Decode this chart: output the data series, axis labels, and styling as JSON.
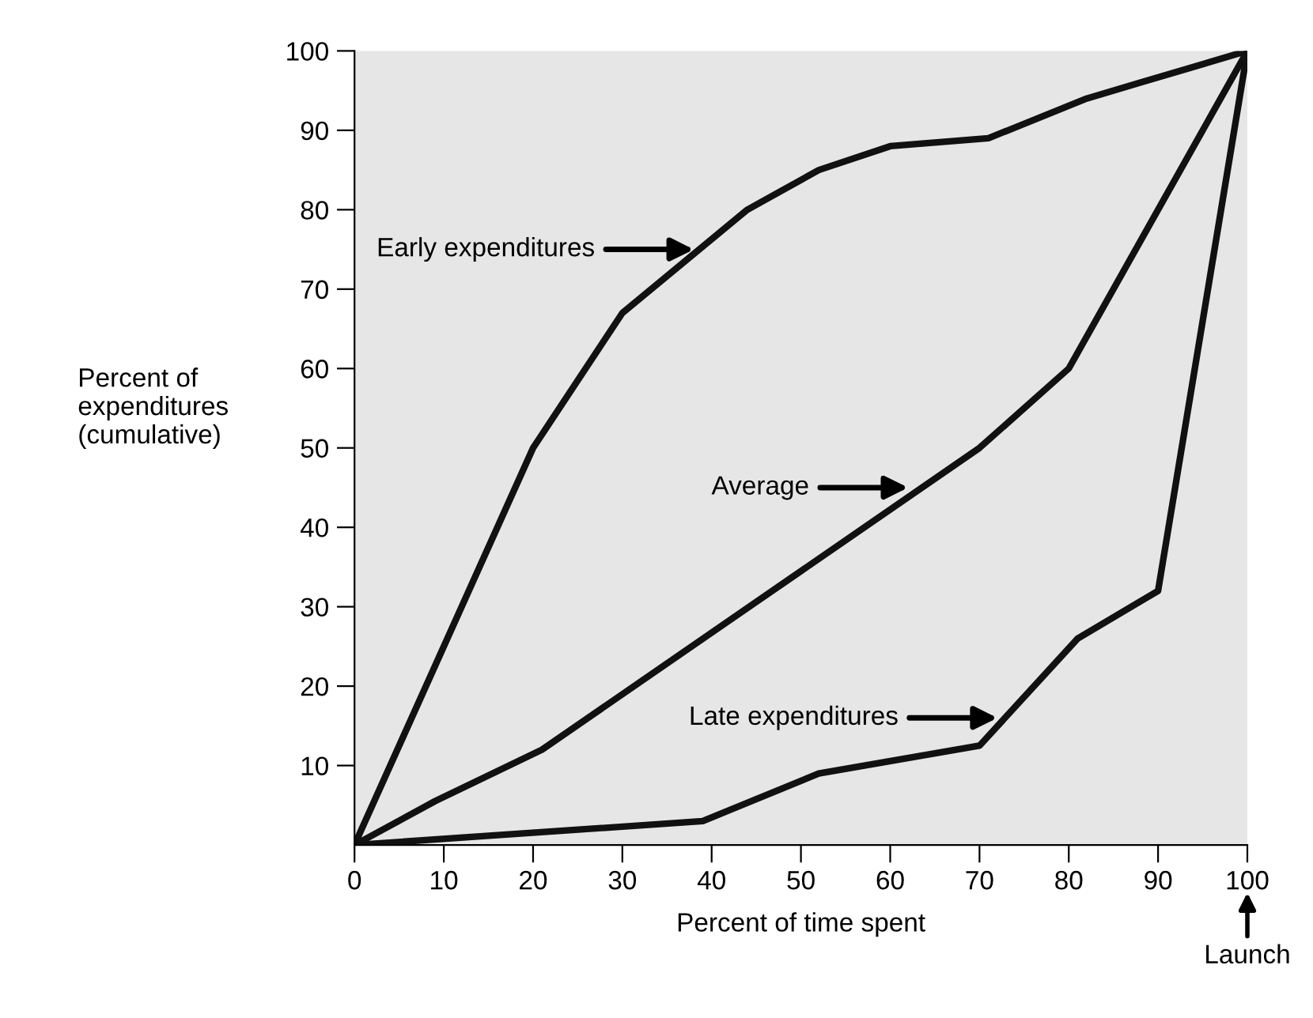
{
  "chart_data": {
    "type": "line",
    "xlabel": "Percent of time spent",
    "ylabel": "Percent of\nexpenditures\n(cumulative)",
    "xlim": [
      0,
      100
    ],
    "ylim": [
      0,
      100
    ],
    "xticks": [
      0,
      10,
      20,
      30,
      40,
      50,
      60,
      70,
      80,
      90,
      100
    ],
    "yticks": [
      10,
      20,
      30,
      40,
      50,
      60,
      70,
      80,
      90,
      100
    ],
    "grid": false,
    "marker": "none",
    "line_style": "solid",
    "series": [
      {
        "color": "#111111",
        "x": [
          0,
          20,
          30,
          44,
          52,
          60,
          71,
          82,
          88,
          100
        ],
        "values": [
          0,
          50,
          67,
          80,
          85,
          88,
          89,
          94,
          96,
          100
        ]
      },
      {
        "color": "#111111",
        "x": [
          0,
          9,
          21,
          70,
          80,
          100
        ],
        "values": [
          0,
          5.5,
          12,
          50,
          60,
          100
        ]
      },
      {
        "color": "#111111",
        "x": [
          0,
          39,
          52,
          70,
          81,
          90,
          100
        ],
        "values": [
          0,
          3,
          9,
          12.5,
          26,
          32,
          100
        ]
      }
    ],
    "annotations": [
      {
        "text": "Early expenditures",
        "x": 38,
        "y": 75
      },
      {
        "text": "Average",
        "x": 62,
        "y": 45
      },
      {
        "text": "Late expenditures",
        "x": 72,
        "y": 16
      },
      "Launch"
    ]
  }
}
